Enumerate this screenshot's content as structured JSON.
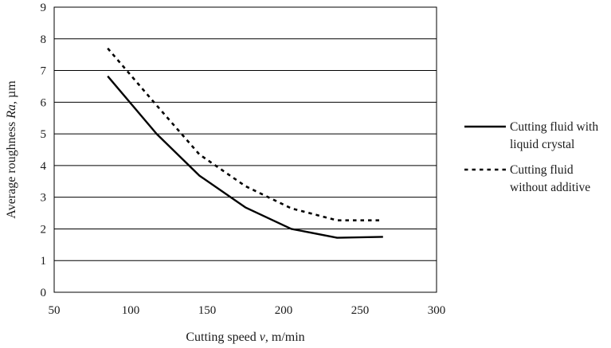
{
  "chart_data": {
    "type": "line",
    "xlabel_prefix": "Cutting speed ",
    "xlabel_var": "v",
    "xlabel_suffix": ", m/min",
    "ylabel_prefix": "Average roughness ",
    "ylabel_var": "Ra",
    "ylabel_suffix": ", µm",
    "xlim": [
      50,
      300
    ],
    "ylim": [
      0,
      9
    ],
    "x_ticks": [
      50,
      100,
      150,
      200,
      250,
      300
    ],
    "y_ticks": [
      0,
      1,
      2,
      3,
      4,
      5,
      6,
      7,
      8,
      9
    ],
    "grid": "horizontal",
    "legend_position": "right",
    "series": [
      {
        "legend_lines": [
          "Cutting fluid with",
          "liquid crystal"
        ],
        "style": "solid",
        "color": "#000000",
        "x": [
          85,
          117,
          145,
          175,
          205,
          235,
          265
        ],
        "y": [
          6.82,
          5.0,
          3.68,
          2.68,
          2.0,
          1.72,
          1.75
        ]
      },
      {
        "legend_lines": [
          "Cutting fluid",
          "without additive"
        ],
        "style": "dashed",
        "color": "#000000",
        "x": [
          85,
          117,
          145,
          175,
          205,
          235,
          265
        ],
        "y": [
          7.7,
          5.9,
          4.35,
          3.35,
          2.65,
          2.27,
          2.27
        ]
      }
    ]
  }
}
